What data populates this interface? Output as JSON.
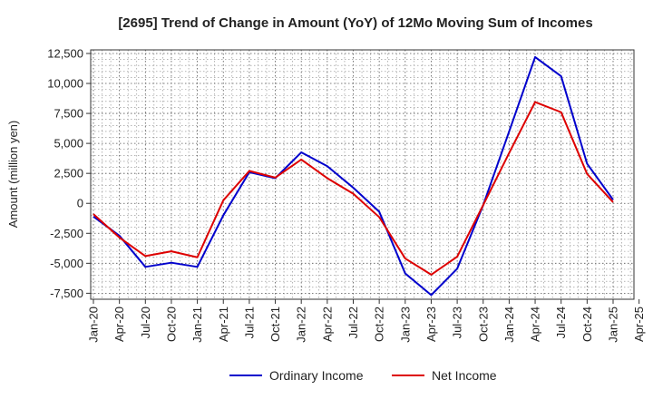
{
  "chart_data": {
    "type": "line",
    "title": "[2695]  Trend of Change in Amount (YoY) of 12Mo Moving Sum of Incomes",
    "ylabel": "Amount (million yen)",
    "xlabel": "",
    "x_ticks": [
      "Jan-20",
      "Apr-20",
      "Jul-20",
      "Oct-20",
      "Jan-21",
      "Apr-21",
      "Jul-21",
      "Oct-21",
      "Jan-22",
      "Apr-22",
      "Jul-22",
      "Oct-22",
      "Jan-23",
      "Apr-23",
      "Jul-23",
      "Oct-23",
      "Jan-24",
      "Apr-24",
      "Jul-24",
      "Oct-24",
      "Jan-25",
      "Apr-25"
    ],
    "x": [
      "Jan-20",
      "Apr-20",
      "Jul-20",
      "Oct-20",
      "Jan-21",
      "Apr-21",
      "Jul-21",
      "Oct-21",
      "Jan-22",
      "Apr-22",
      "Jul-22",
      "Oct-22",
      "Jan-23",
      "Apr-23",
      "Jul-23",
      "Oct-23",
      "Jan-24",
      "Apr-24",
      "Jul-24",
      "Oct-24",
      "Jan-25"
    ],
    "y_ticks": [
      "12,500",
      "10,000",
      "7,500",
      "5,000",
      "2,500",
      "0",
      "-2,500",
      "-5,000",
      "-7,500"
    ],
    "y_tick_values": [
      12500,
      10000,
      7500,
      5000,
      2500,
      0,
      -2500,
      -5000,
      -7500
    ],
    "ylim": [
      -8000,
      12800
    ],
    "grid": true,
    "legend_position": "bottom-center",
    "series": [
      {
        "name": "Ordinary Income",
        "color": "#0000cc",
        "values": [
          -1100,
          -2700,
          -5300,
          -4950,
          -5300,
          -1000,
          2600,
          2100,
          4250,
          3100,
          1300,
          -700,
          -5850,
          -7650,
          -5450,
          -150,
          6000,
          12200,
          10600,
          3300,
          300
        ]
      },
      {
        "name": "Net Income",
        "color": "#dd0000",
        "values": [
          -900,
          -2850,
          -4400,
          -4000,
          -4500,
          250,
          2700,
          2150,
          3650,
          2100,
          800,
          -1150,
          -4600,
          -5950,
          -4450,
          -150,
          4200,
          8450,
          7600,
          2450,
          100
        ]
      }
    ]
  }
}
